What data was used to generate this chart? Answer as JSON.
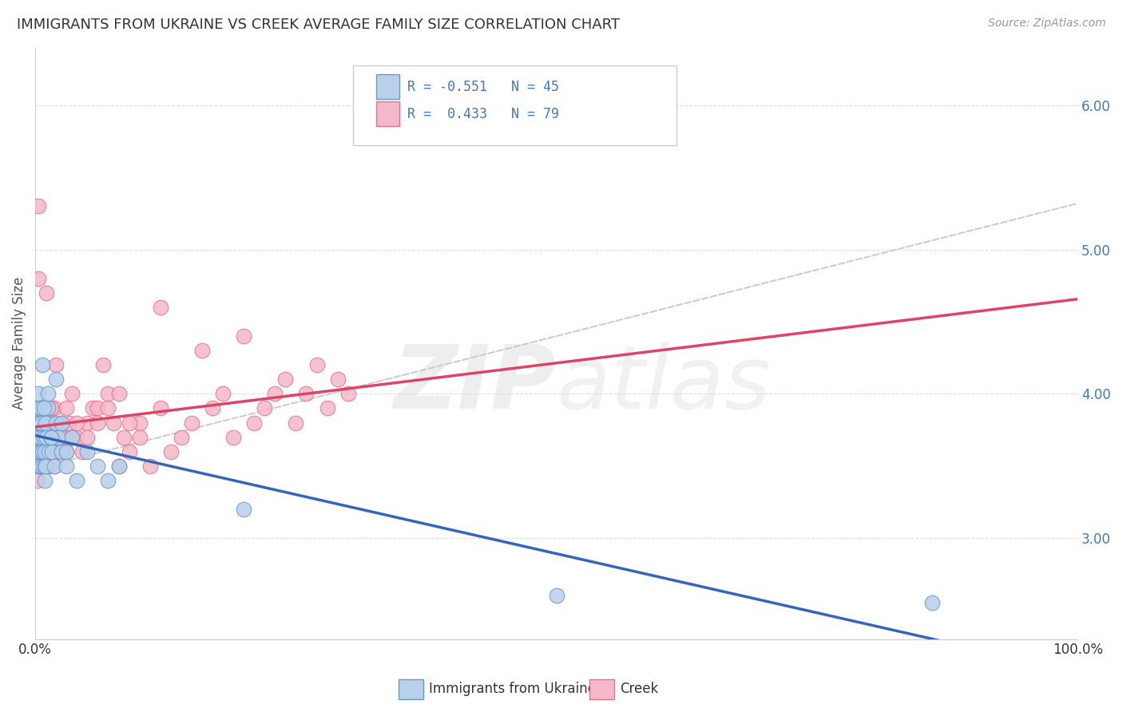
{
  "title": "IMMIGRANTS FROM UKRAINE VS CREEK AVERAGE FAMILY SIZE CORRELATION CHART",
  "source": "Source: ZipAtlas.com",
  "ylabel": "Average Family Size",
  "xlim": [
    0.0,
    1.0
  ],
  "ylim": [
    2.3,
    6.4
  ],
  "yticks": [
    3.0,
    4.0,
    5.0,
    6.0
  ],
  "ytick_labels": [
    "3.00",
    "4.00",
    "5.00",
    "6.00"
  ],
  "xtick_labels": [
    "0.0%",
    "100.0%"
  ],
  "legend_labels": [
    "Immigrants from Ukraine",
    "Creek"
  ],
  "ukraine_color": "#b8d0ea",
  "creek_color": "#f5b8c8",
  "ukraine_edge": "#6699cc",
  "creek_edge": "#e87090",
  "trend_ukraine_color": "#3366bb",
  "trend_creek_color": "#dd4466",
  "trend_extrapolate_color": "#cccccc",
  "R_ukraine": -0.551,
  "N_ukraine": 45,
  "R_creek": 0.433,
  "N_creek": 79,
  "ukraine_x": [
    0.001,
    0.002,
    0.002,
    0.003,
    0.003,
    0.004,
    0.004,
    0.005,
    0.005,
    0.005,
    0.006,
    0.006,
    0.007,
    0.007,
    0.008,
    0.008,
    0.009,
    0.009,
    0.01,
    0.01,
    0.011,
    0.012,
    0.013,
    0.015,
    0.016,
    0.018,
    0.02,
    0.022,
    0.025,
    0.03,
    0.035,
    0.04,
    0.05,
    0.06,
    0.07,
    0.08,
    0.02,
    0.025,
    0.03,
    0.015,
    0.012,
    0.008,
    0.5,
    0.86,
    0.2
  ],
  "ukraine_y": [
    3.8,
    3.6,
    3.9,
    3.7,
    4.0,
    3.5,
    3.8,
    3.6,
    3.7,
    3.9,
    3.5,
    3.8,
    3.6,
    4.2,
    3.7,
    3.5,
    3.4,
    3.6,
    3.5,
    3.8,
    3.7,
    3.9,
    3.6,
    3.7,
    3.6,
    3.5,
    3.8,
    3.7,
    3.6,
    3.6,
    3.7,
    3.4,
    3.6,
    3.5,
    3.4,
    3.5,
    4.1,
    3.8,
    3.5,
    3.7,
    4.0,
    3.9,
    2.6,
    2.55,
    3.2
  ],
  "creek_x": [
    0.001,
    0.002,
    0.002,
    0.003,
    0.003,
    0.004,
    0.005,
    0.006,
    0.007,
    0.008,
    0.009,
    0.01,
    0.011,
    0.012,
    0.013,
    0.015,
    0.016,
    0.018,
    0.02,
    0.022,
    0.025,
    0.028,
    0.03,
    0.033,
    0.035,
    0.04,
    0.045,
    0.05,
    0.055,
    0.06,
    0.065,
    0.07,
    0.075,
    0.08,
    0.085,
    0.09,
    0.1,
    0.11,
    0.12,
    0.13,
    0.14,
    0.15,
    0.16,
    0.17,
    0.18,
    0.19,
    0.2,
    0.21,
    0.22,
    0.23,
    0.24,
    0.25,
    0.26,
    0.27,
    0.28,
    0.29,
    0.3,
    0.003,
    0.004,
    0.005,
    0.006,
    0.008,
    0.01,
    0.012,
    0.015,
    0.018,
    0.02,
    0.025,
    0.03,
    0.04,
    0.05,
    0.06,
    0.07,
    0.08,
    0.09,
    0.1,
    0.12,
    0.003,
    0.035
  ],
  "creek_y": [
    3.5,
    3.4,
    3.6,
    3.5,
    5.3,
    3.6,
    3.5,
    3.6,
    3.5,
    3.6,
    3.7,
    3.8,
    4.7,
    3.6,
    3.5,
    3.7,
    3.8,
    3.9,
    3.7,
    3.6,
    3.8,
    3.7,
    3.9,
    3.8,
    4.0,
    3.7,
    3.6,
    3.8,
    3.9,
    3.9,
    4.2,
    4.0,
    3.8,
    3.5,
    3.7,
    3.6,
    3.8,
    3.5,
    4.6,
    3.6,
    3.7,
    3.8,
    4.3,
    3.9,
    4.0,
    3.7,
    4.4,
    3.8,
    3.9,
    4.0,
    4.1,
    3.8,
    4.0,
    4.2,
    3.9,
    4.1,
    4.0,
    3.6,
    3.7,
    3.8,
    3.9,
    3.7,
    3.6,
    3.8,
    3.9,
    3.5,
    4.2,
    3.7,
    3.6,
    3.8,
    3.7,
    3.8,
    3.9,
    4.0,
    3.8,
    3.7,
    3.9,
    4.8,
    3.7
  ],
  "watermark_zip": "ZIP",
  "watermark_atlas": "atlas",
  "background_color": "#ffffff",
  "grid_color": "#dddddd",
  "label_color": "#4477bb",
  "legend_value_color": "#4477bb"
}
